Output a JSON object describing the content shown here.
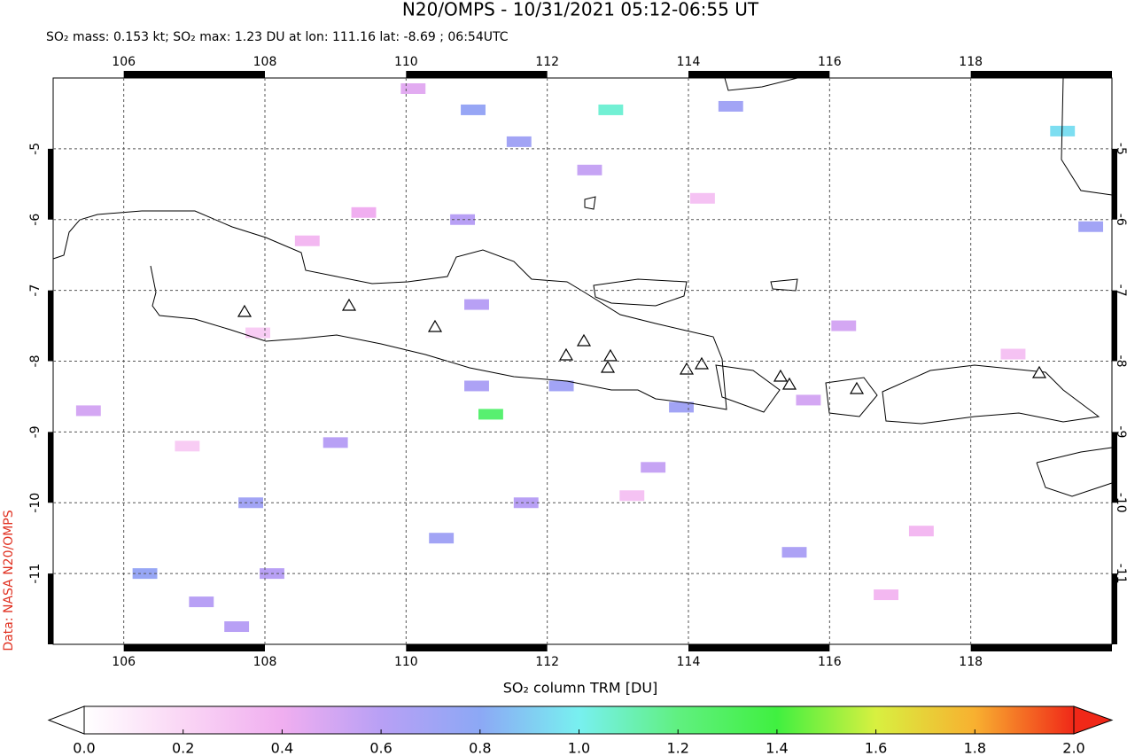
{
  "header": {
    "title": "N20/OMPS - 10/31/2021 05:12-06:55 UT",
    "subtitle": "SO₂ mass: 0.153 kt; SO₂ max: 1.23 DU at lon: 111.16 lat: -8.69 ; 06:54UTC",
    "source": "Data: NASA N20/OMPS"
  },
  "chart_data": {
    "type": "map",
    "xlim": [
      105,
      120
    ],
    "ylim": [
      -12,
      -4
    ],
    "xticks": [
      106,
      108,
      110,
      112,
      114,
      116,
      118
    ],
    "yticks": [
      -5,
      -6,
      -7,
      -8,
      -9,
      -10,
      -11
    ],
    "grid": true,
    "pixels": {
      "lon": [
        112.9,
        111.2,
        119.3,
        110.95,
        111.6,
        107.8,
        106.3,
        110.5,
        111.0,
        112.2,
        113.9,
        108.1,
        107.1,
        115.5,
        114.6,
        119.7,
        110.8,
        111.0,
        109.0,
        113.5,
        110.1,
        112.6,
        107.6,
        111.7,
        115.7,
        116.2,
        105.5,
        108.6,
        109.4,
        113.2,
        117.3,
        106.9,
        114.2,
        116.8,
        118.6,
        107.9
      ],
      "lat": [
        -4.45,
        -8.75,
        -4.75,
        -4.45,
        -4.9,
        -10.0,
        -11.0,
        -10.5,
        -8.35,
        -8.35,
        -8.65,
        -11.0,
        -11.4,
        -10.7,
        -4.4,
        -6.1,
        -6.0,
        -7.2,
        -9.15,
        -9.5,
        -4.15,
        -5.3,
        -11.75,
        -10.0,
        -8.55,
        -7.5,
        -8.7,
        -6.3,
        -5.9,
        -9.9,
        -10.4,
        -9.2,
        -5.7,
        -11.3,
        -7.9,
        -7.6
      ],
      "values": [
        1.05,
        1.25,
        0.95,
        0.75,
        0.7,
        0.7,
        0.75,
        0.7,
        0.65,
        0.7,
        0.7,
        0.6,
        0.6,
        0.65,
        0.7,
        0.7,
        0.6,
        0.6,
        0.6,
        0.55,
        0.45,
        0.55,
        0.6,
        0.6,
        0.5,
        0.5,
        0.5,
        0.35,
        0.4,
        0.3,
        0.35,
        0.25,
        0.3,
        0.35,
        0.3,
        0.25
      ]
    },
    "colorbar": {
      "label": "SO₂ column TRM [DU]",
      "lim": [
        0,
        2
      ],
      "ticks": [
        {
          "value": 0,
          "label": "0.0"
        },
        0.2,
        0.4,
        0.6,
        0.8,
        {
          "value": 1,
          "label": "1.0"
        },
        1.2,
        1.4,
        1.6,
        1.8,
        {
          "value": 2,
          "label": "2.0"
        }
      ],
      "colors": [
        "#ffffff",
        "#fad6f5",
        "#f0aef0",
        "#b8a0f5",
        "#8ca8f5",
        "#78f0f0",
        "#60f080",
        "#40f040",
        "#d8f040",
        "#f8b030",
        "#f02818"
      ]
    }
  }
}
